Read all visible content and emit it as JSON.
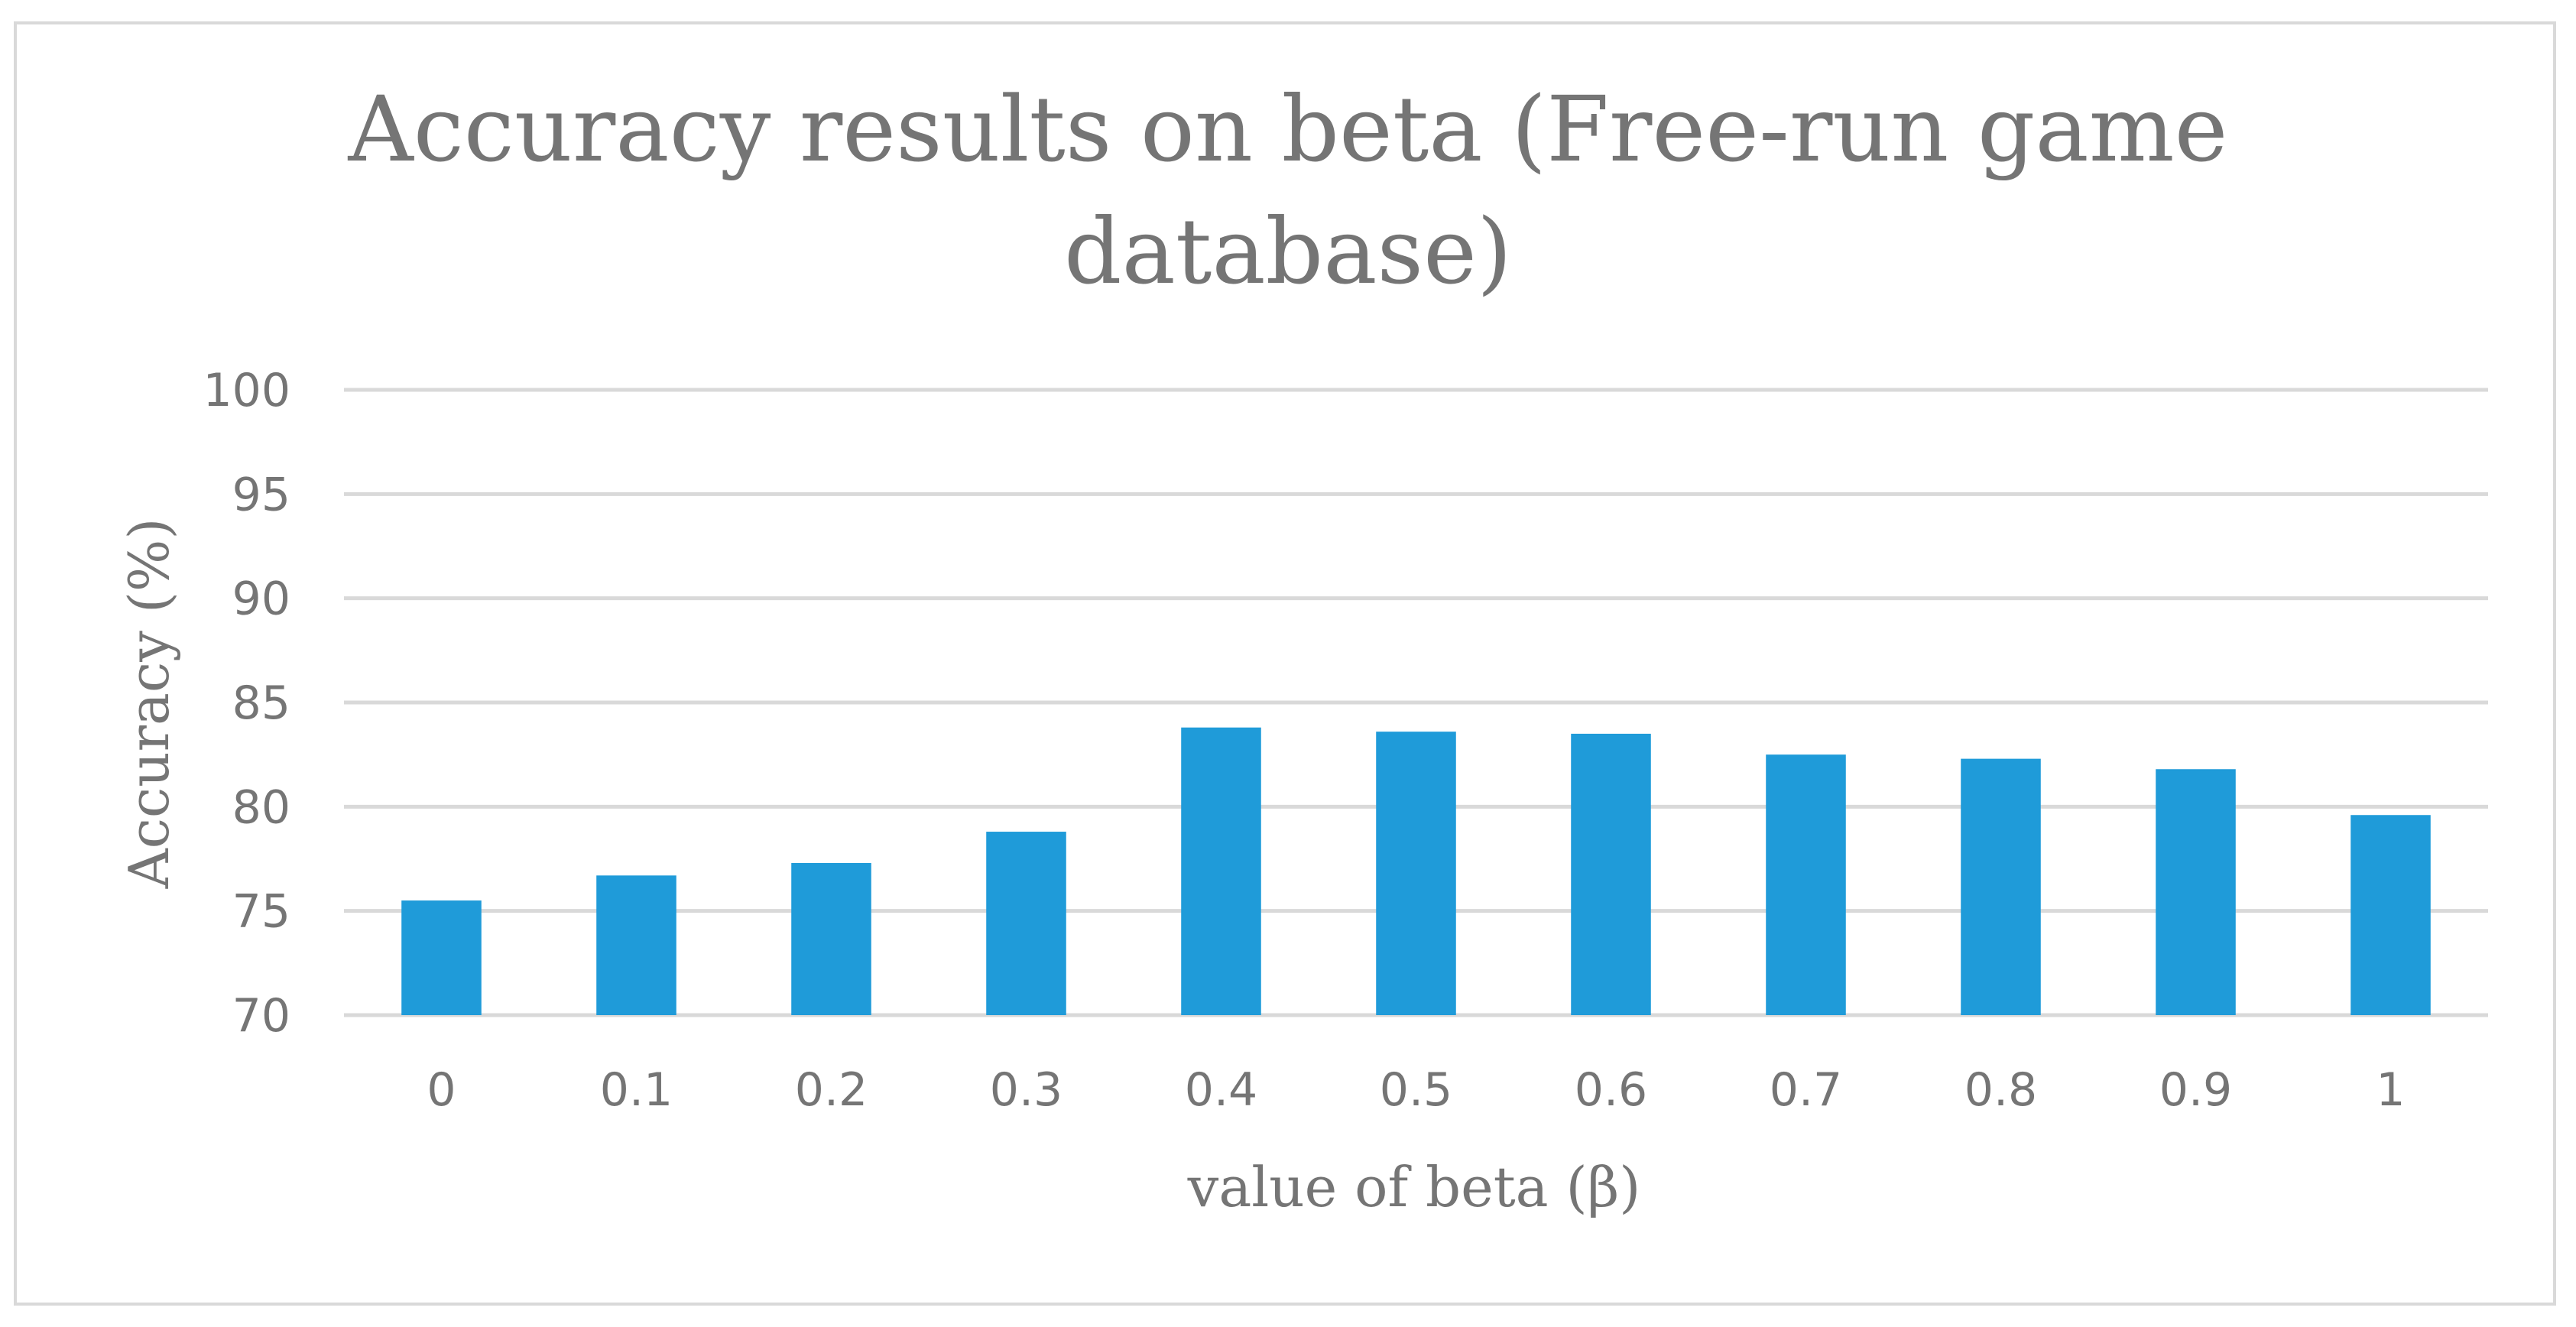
{
  "chart_data": {
    "type": "bar",
    "title_lines": [
      "Accuracy results on beta (Free-run game",
      "database)"
    ],
    "xlabel": "value of beta (β)",
    "ylabel": "Accuracy (%)",
    "ylim": [
      70,
      100
    ],
    "yticks": [
      70,
      75,
      80,
      85,
      90,
      95,
      100
    ],
    "categories": [
      "0",
      "0.1",
      "0.2",
      "0.3",
      "0.4",
      "0.5",
      "0.6",
      "0.7",
      "0.8",
      "0.9",
      "1"
    ],
    "values": [
      75.5,
      76.7,
      77.3,
      78.8,
      83.8,
      83.6,
      83.5,
      82.5,
      82.3,
      81.8,
      79.6
    ],
    "grid": true,
    "legend": "none",
    "colors": {
      "bar": "#1f9bd9",
      "grid": "#d9d9d9",
      "text": "#757575"
    }
  }
}
